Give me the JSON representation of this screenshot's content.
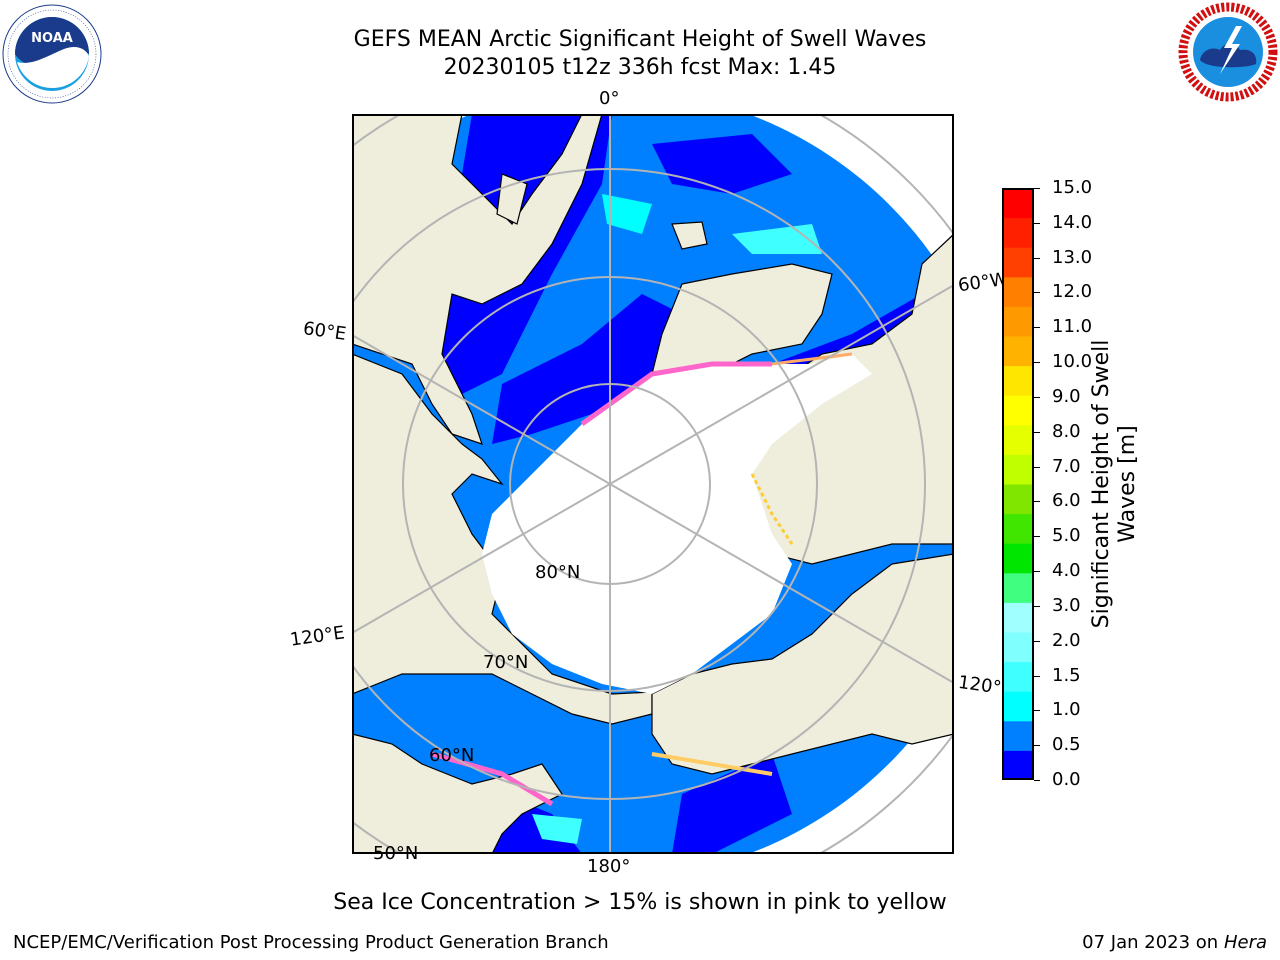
{
  "title": {
    "line1": "GEFS MEAN Arctic Significant Height of Swell Waves",
    "line2": "20230105 t12z 336h fcst   Max: 1.45"
  },
  "logos": {
    "left": {
      "name": "NOAA",
      "text": "NOAA",
      "ring_text": "NATIONAL OCEANIC AND ATMOSPHERIC ADMINISTRATION · U.S. DEPARTMENT OF COMMERCE"
    },
    "right": {
      "name": "National Weather Service",
      "ring_text": "NATIONAL WEATHER SERVICE"
    }
  },
  "map": {
    "projection": "north polar stereographic",
    "longitude_labels": {
      "top": "0°",
      "left_upper": "60°E",
      "left_lower": "120°E",
      "bottom": "180°",
      "right_upper": "60°W",
      "right_lower": "120°W"
    },
    "latitude_labels": {
      "lat80": "80°N",
      "lat70": "70°N",
      "lat60": "60°N",
      "lat50": "50°N"
    },
    "colors": {
      "land": "#efeedd",
      "ice": "#ffffff",
      "grid": "#b4b4b4"
    }
  },
  "colorbar": {
    "label": "Significant Height of Swell Waves [m]",
    "ticks": [
      "15.0",
      "14.0",
      "13.0",
      "12.0",
      "11.0",
      "10.0",
      "9.0",
      "8.0",
      "7.0",
      "6.0",
      "5.0",
      "4.0",
      "3.0",
      "2.0",
      "1.5",
      "1.0",
      "0.5",
      "0.0"
    ],
    "colors": [
      "#0000ff",
      "#0080ff",
      "#00ffff",
      "#40ffff",
      "#80ffff",
      "#a0ffff",
      "#40ff80",
      "#00e600",
      "#40e600",
      "#80e600",
      "#c0ff00",
      "#e6ff00",
      "#ffff00",
      "#ffe600",
      "#ffb300",
      "#ff9900",
      "#ff8000",
      "#ff4000",
      "#ff2000",
      "#ff0000"
    ]
  },
  "caption": "Sea Ice Concentration > 15% is shown in pink to yellow",
  "footer": {
    "left": "NCEP/EMC/Verification Post Processing Product Generation Branch",
    "right_date": "07 Jan 2023 on ",
    "right_machine": "Hera"
  }
}
